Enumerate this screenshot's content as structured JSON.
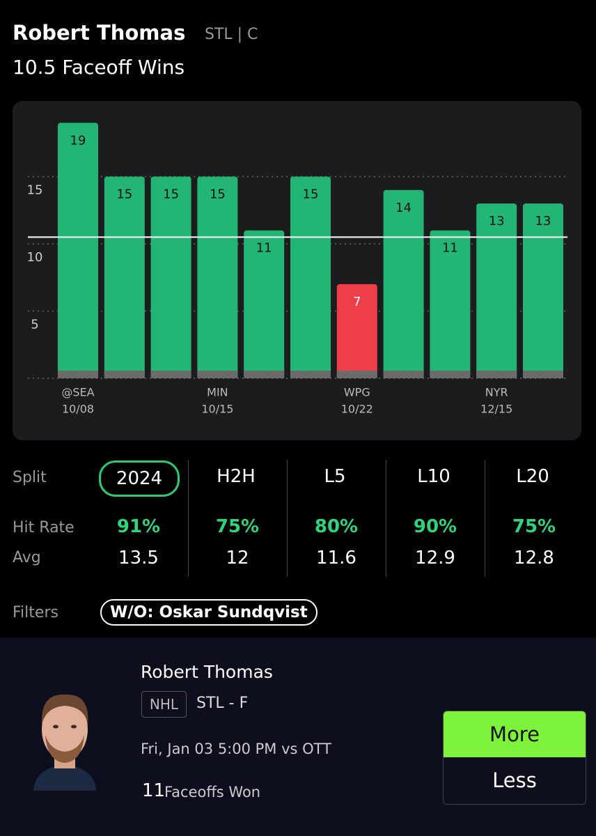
{
  "header": {
    "player": "Robert Thomas",
    "team_pos": "STL | C",
    "prop": "10.5 Faceoff Wins"
  },
  "chart_data": {
    "type": "bar",
    "categories": [
      "@SEA",
      null,
      null,
      "MIN",
      null,
      null,
      "WPG",
      null,
      null,
      "NYR",
      null
    ],
    "dates": [
      "10/08",
      null,
      null,
      "10/15",
      null,
      null,
      "10/22",
      null,
      null,
      "12/15",
      null
    ],
    "values": [
      19,
      15,
      15,
      15,
      11,
      15,
      7,
      14,
      11,
      13,
      13
    ],
    "line": 10.5,
    "color": "#22b573",
    "miss_color": "#ee3e4a",
    "ylim": [
      0,
      20
    ],
    "yticks": [
      5,
      10,
      15
    ],
    "grid": true
  },
  "splits": {
    "labels": {
      "split": "Split",
      "hit_rate": "Hit Rate",
      "avg": "Avg",
      "filters": "Filters"
    },
    "columns": [
      {
        "name": "2024",
        "hit_rate": "91%",
        "avg": 13.5
      },
      {
        "name": "H2H",
        "hit_rate": "75%",
        "avg": 12
      },
      {
        "name": "L5",
        "hit_rate": "80%",
        "avg": 11.6
      },
      {
        "name": "L10",
        "hit_rate": "90%",
        "avg": 12.9
      },
      {
        "name": "L20",
        "hit_rate": "75%",
        "avg": 12.8
      }
    ],
    "filter": "W/O: Oskar Sundqvist"
  },
  "card": {
    "player": "Robert Thomas",
    "league": "NHL",
    "team_pos": "STL - F",
    "game": "Fri, Jan 03 5:00 PM vs OTT",
    "line": "11",
    "stat": "Faceoffs Won",
    "more": "More",
    "less": "Less"
  }
}
